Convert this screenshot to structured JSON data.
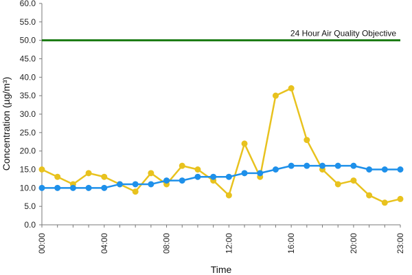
{
  "chart_data": {
    "type": "line",
    "title": "",
    "xlabel": "Time",
    "ylabel": "Concentration (µg/m³)",
    "ylim": [
      0,
      60
    ],
    "yticks": [
      "0.0",
      "5.0",
      "10.0",
      "15.0",
      "20.0",
      "25.0",
      "30.0",
      "35.0",
      "40.0",
      "45.0",
      "50.0",
      "55.0",
      "60.0"
    ],
    "x": [
      "00:00",
      "01:00",
      "02:00",
      "03:00",
      "04:00",
      "05:00",
      "06:00",
      "07:00",
      "08:00",
      "09:00",
      "10:00",
      "11:00",
      "12:00",
      "13:00",
      "14:00",
      "15:00",
      "16:00",
      "17:00",
      "18:00",
      "19:00",
      "20:00",
      "21:00",
      "22:00",
      "23:00"
    ],
    "xtick_labels": [
      "00:00",
      "04:00",
      "08:00",
      "12:00",
      "16:00",
      "20:00",
      "23:00"
    ],
    "grid": false,
    "legend": "none",
    "series": [
      {
        "color": "#e8c21e",
        "values": [
          15,
          13,
          11,
          14,
          13,
          11,
          9,
          14,
          11,
          16,
          15,
          12,
          8,
          22,
          13,
          35,
          37,
          23,
          15,
          11,
          12,
          8,
          6,
          7
        ]
      },
      {
        "color": "#1e90ea",
        "values": [
          10,
          10,
          10,
          10,
          10,
          11,
          11,
          11,
          12,
          12,
          13,
          13,
          13,
          14,
          14,
          15,
          16,
          16,
          16,
          16,
          16,
          15,
          15,
          15
        ]
      }
    ],
    "reference_line": {
      "value": 50,
      "label": "24 Hour Air Quality Objective",
      "color": "#1a7a12"
    }
  }
}
